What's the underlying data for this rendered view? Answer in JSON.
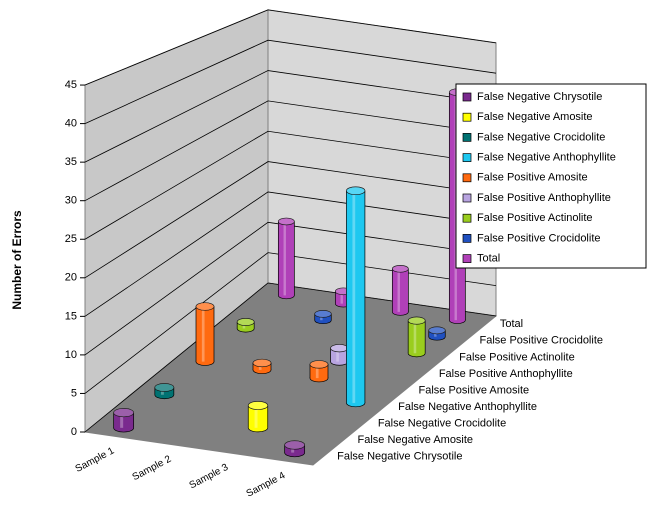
{
  "chart_data": {
    "type": "bar3d",
    "y_label": "Number of Errors",
    "categories": [
      "Sample 1",
      "Sample 2",
      "Sample 3",
      "Sample 4"
    ],
    "series": [
      {
        "name": "False Negative Chrysotile",
        "color": "#7a2a8e",
        "values": [
          2,
          0,
          0,
          1
        ]
      },
      {
        "name": "False Negative Amosite",
        "color": "#ffff00",
        "values": [
          0,
          0,
          3,
          0
        ]
      },
      {
        "name": "False Negative Crocidolite",
        "color": "#007272",
        "values": [
          1,
          0,
          0,
          0
        ]
      },
      {
        "name": "False Negative Anthophyllite",
        "color": "#1ec8f0",
        "values": [
          0,
          0,
          0,
          30
        ]
      },
      {
        "name": "False Positive Amosite",
        "color": "#ff6a10",
        "values": [
          8,
          1,
          2,
          0
        ]
      },
      {
        "name": "False Positive Anthophyllite",
        "color": "#b8a4e0",
        "values": [
          0,
          0,
          2,
          0
        ]
      },
      {
        "name": "False Positive Actinolite",
        "color": "#9acd1e",
        "values": [
          1,
          0,
          0,
          5
        ]
      },
      {
        "name": "False Positive Crocidolite",
        "color": "#2050c0",
        "values": [
          0,
          1,
          0,
          1
        ]
      },
      {
        "name": "Total",
        "color": "#b040b8",
        "values": [
          12,
          2,
          7,
          37
        ]
      }
    ],
    "ylim": [
      0,
      45
    ],
    "yticks": [
      0,
      5,
      10,
      15,
      20,
      25,
      30,
      35,
      40,
      45
    ],
    "grid": true,
    "legend": "right"
  }
}
